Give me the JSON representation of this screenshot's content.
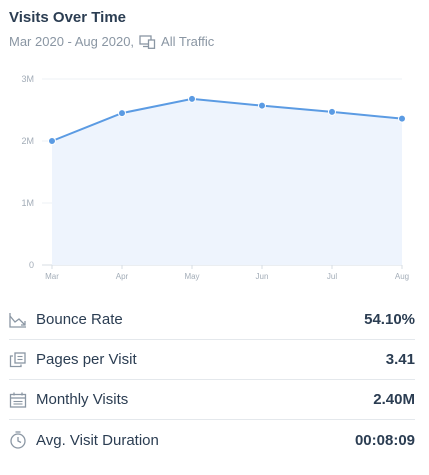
{
  "widget": {
    "title": "Visits Over Time",
    "date_range": "Mar 2020 - Aug 2020,",
    "traffic_icon": "devices-icon",
    "traffic_label": "All Traffic"
  },
  "chart_data": {
    "type": "area",
    "categories": [
      "Mar",
      "Apr",
      "May",
      "Jun",
      "Jul",
      "Aug"
    ],
    "series": [
      {
        "values": [
          2.0,
          2.45,
          2.68,
          2.57,
          2.47,
          2.36
        ]
      }
    ],
    "value_unit": "M",
    "yticks": [
      "0",
      "1M",
      "2M",
      "3M"
    ],
    "ylim": [
      0,
      3
    ],
    "grid": true,
    "line_color": "#5b9be3",
    "fill_color": "#eef4fd",
    "marker_color": "#5b9be3"
  },
  "metrics": [
    {
      "icon": "bounce-rate-icon",
      "label": "Bounce Rate",
      "value": "54.10%"
    },
    {
      "icon": "pages-icon",
      "label": "Pages per Visit",
      "value": "3.41"
    },
    {
      "icon": "calendar-icon",
      "label": "Monthly Visits",
      "value": "2.40M"
    },
    {
      "icon": "clock-icon",
      "label": "Avg. Visit Duration",
      "value": "00:08:09"
    }
  ],
  "colors": {
    "text_primary": "#2b3d52",
    "text_secondary": "#8a96a3",
    "divider": "#e4e8ec"
  }
}
